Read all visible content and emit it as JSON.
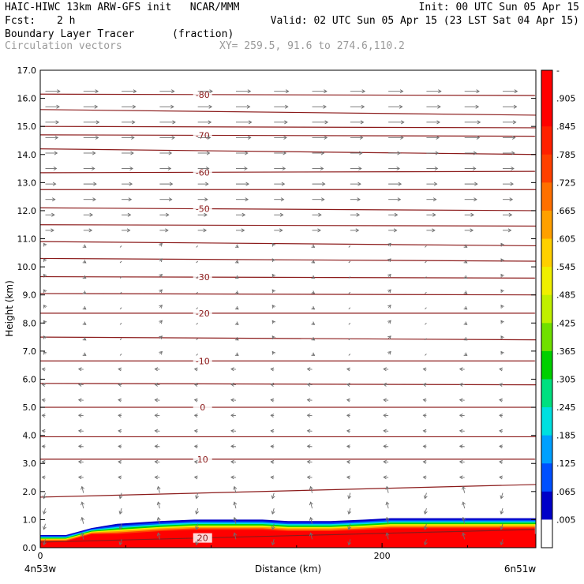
{
  "header": {
    "model_line": "HAIC-HIWC 13km ARW-GFS init   NCAR/MMM",
    "init_line": "Init: 00 UTC Sun 05 Apr 15",
    "fcst_label": "Fcst:",
    "fcst_value": "2 h",
    "valid_line": "Valid: 02 UTC Sun 05 Apr 15 (23 LST Sat 04 Apr 15)",
    "field_name": "Boundary Layer Tracer",
    "field_units": "(fraction)",
    "overlay_name": "Circulation vectors",
    "xy_line": "XY= 259.5, 91.6 to 274.6,110.2"
  },
  "colors": {
    "temperature_contour": "#8b1a1a",
    "vector": "#6e6e6e",
    "palette": [
      "#ffffff",
      "#0000c8",
      "#0050ff",
      "#00a0ff",
      "#00e0e0",
      "#00e080",
      "#00d000",
      "#70e000",
      "#c0f000",
      "#f0f000",
      "#ffd000",
      "#ffa000",
      "#ff7000",
      "#ff4000",
      "#ff2000",
      "#ff0000"
    ]
  },
  "chart_data": {
    "type": "contour-cross-section",
    "ylabel": "Height (km)",
    "xlabel": "Distance (km)",
    "x_end_labels": [
      "4n53w",
      "6n51w"
    ],
    "xlim": [
      0,
      290
    ],
    "ylim": [
      0,
      17
    ],
    "x_ticks": [
      0,
      200
    ],
    "y_ticks": [
      "0.0",
      "1.0",
      "2.0",
      "3.0",
      "4.0",
      "5.0",
      "6.0",
      "7.0",
      "8.0",
      "9.0",
      "10.0",
      "11.0",
      "12.0",
      "13.0",
      "14.0",
      "15.0",
      "16.0",
      "17.0"
    ],
    "colorbar_labels": [
      "-",
      ".905",
      ".845",
      ".785",
      ".725",
      ".665",
      ".605",
      ".545",
      ".485",
      ".425",
      ".365",
      ".305",
      ".245",
      ".185",
      ".125",
      ".065",
      ".005"
    ],
    "tracer_top_km": [
      [
        0,
        0.45
      ],
      [
        15,
        0.45
      ],
      [
        30,
        0.7
      ],
      [
        45,
        0.85
      ],
      [
        70,
        0.95
      ],
      [
        90,
        1.0
      ],
      [
        110,
        1.0
      ],
      [
        130,
        1.0
      ],
      [
        145,
        0.95
      ],
      [
        170,
        0.95
      ],
      [
        190,
        1.0
      ],
      [
        205,
        1.05
      ],
      [
        230,
        1.05
      ],
      [
        245,
        1.05
      ],
      [
        265,
        1.05
      ],
      [
        290,
        1.05
      ]
    ],
    "isotherms": [
      {
        "label": "-80",
        "left_km": 16.15,
        "right_km": 16.1
      },
      {
        "label": "",
        "left_km": 15.6,
        "right_km": 15.4
      },
      {
        "label": "",
        "left_km": 15.0,
        "right_km": 14.95
      },
      {
        "label": "-70",
        "left_km": 14.7,
        "right_km": 14.65
      },
      {
        "label": "",
        "left_km": 14.2,
        "right_km": 14.0
      },
      {
        "label": "-60",
        "left_km": 13.35,
        "right_km": 13.4
      },
      {
        "label": "",
        "left_km": 12.75,
        "right_km": 12.75
      },
      {
        "label": "-50",
        "left_km": 12.1,
        "right_km": 12.0
      },
      {
        "label": "",
        "left_km": 11.5,
        "right_km": 11.45
      },
      {
        "label": "",
        "left_km": 10.9,
        "right_km": 10.75
      },
      {
        "label": "",
        "left_km": 10.3,
        "right_km": 10.2
      },
      {
        "label": "-30",
        "left_km": 9.65,
        "right_km": 9.6
      },
      {
        "label": "",
        "left_km": 9.05,
        "right_km": 9.0
      },
      {
        "label": "-20",
        "left_km": 8.35,
        "right_km": 8.35
      },
      {
        "label": "",
        "left_km": 7.5,
        "right_km": 7.4
      },
      {
        "label": "-10",
        "left_km": 6.65,
        "right_km": 6.65
      },
      {
        "label": "",
        "left_km": 5.85,
        "right_km": 5.8
      },
      {
        "label": "0",
        "left_km": 5.0,
        "right_km": 5.0
      },
      {
        "label": "",
        "left_km": 3.95,
        "right_km": 3.95
      },
      {
        "label": "10",
        "left_km": 3.15,
        "right_km": 3.15
      },
      {
        "label": "",
        "left_km": 1.8,
        "right_km": 2.25
      },
      {
        "label": "20",
        "left_km": 0.2,
        "right_km": 0.65
      }
    ]
  }
}
